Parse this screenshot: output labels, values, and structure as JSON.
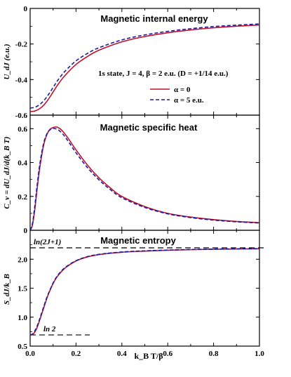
{
  "chart_data": [
    {
      "type": "line",
      "title": "Magnetic internal energy",
      "ylabel": "U_dJ (e.u.)",
      "xlim": [
        0,
        1.0
      ],
      "ylim": [
        -0.6,
        0
      ],
      "yticks": [
        "0",
        "-0.2",
        "-0.4",
        "-0.6"
      ],
      "annotation": "1s state, J = 4, β = 2 e.u. (D = +1/14 e.u.)",
      "series": [
        {
          "name": "α = 0",
          "color": "#c0102a",
          "dash": "solid",
          "x": [
            0.0,
            0.02,
            0.04,
            0.06,
            0.08,
            0.1,
            0.12,
            0.15,
            0.2,
            0.25,
            0.3,
            0.4,
            0.5,
            0.6,
            0.7,
            0.8,
            0.9,
            1.0
          ],
          "y": [
            -0.58,
            -0.577,
            -0.565,
            -0.543,
            -0.51,
            -0.47,
            -0.43,
            -0.38,
            -0.315,
            -0.27,
            -0.235,
            -0.188,
            -0.158,
            -0.137,
            -0.121,
            -0.109,
            -0.1,
            -0.093
          ]
        },
        {
          "name": "α = 5 e.u.",
          "color": "#1a1a9c",
          "dash": "dashed",
          "x": [
            0.0,
            0.02,
            0.04,
            0.06,
            0.08,
            0.1,
            0.12,
            0.15,
            0.2,
            0.25,
            0.3,
            0.4,
            0.5,
            0.6,
            0.7,
            0.8,
            0.9,
            1.0
          ],
          "y": [
            -0.56,
            -0.556,
            -0.542,
            -0.518,
            -0.484,
            -0.445,
            -0.405,
            -0.356,
            -0.295,
            -0.253,
            -0.221,
            -0.177,
            -0.149,
            -0.129,
            -0.114,
            -0.102,
            -0.094,
            -0.087
          ]
        }
      ]
    },
    {
      "type": "line",
      "title": "Magnetic specific heat",
      "ylabel": "C_v = dU_dJ/d(k_B T)",
      "xlim": [
        0,
        1.0
      ],
      "ylim": [
        0,
        0.68
      ],
      "yticks": [
        "0",
        "0.2",
        "0.4",
        "0.6"
      ],
      "series": [
        {
          "name": "α = 0",
          "color": "#c0102a",
          "dash": "solid",
          "x": [
            0.0,
            0.01,
            0.02,
            0.03,
            0.04,
            0.05,
            0.06,
            0.07,
            0.08,
            0.09,
            0.1,
            0.11,
            0.12,
            0.13,
            0.14,
            0.15,
            0.17,
            0.2,
            0.25,
            0.3,
            0.35,
            0.4,
            0.5,
            0.6,
            0.7,
            0.8,
            0.9,
            1.0
          ],
          "y": [
            0.0,
            0.03,
            0.12,
            0.24,
            0.35,
            0.44,
            0.51,
            0.555,
            0.585,
            0.6,
            0.607,
            0.61,
            0.608,
            0.6,
            0.588,
            0.572,
            0.535,
            0.475,
            0.385,
            0.31,
            0.25,
            0.2,
            0.14,
            0.1,
            0.078,
            0.063,
            0.052,
            0.045
          ]
        },
        {
          "name": "α = 5 e.u.",
          "color": "#1a1a9c",
          "dash": "dashed",
          "x": [
            0.0,
            0.01,
            0.02,
            0.03,
            0.04,
            0.05,
            0.06,
            0.07,
            0.08,
            0.09,
            0.1,
            0.11,
            0.12,
            0.13,
            0.14,
            0.15,
            0.17,
            0.2,
            0.25,
            0.3,
            0.35,
            0.4,
            0.5,
            0.6,
            0.7,
            0.8,
            0.9,
            1.0
          ],
          "y": [
            0.0,
            0.04,
            0.14,
            0.26,
            0.37,
            0.455,
            0.52,
            0.56,
            0.585,
            0.597,
            0.601,
            0.6,
            0.595,
            0.585,
            0.572,
            0.556,
            0.518,
            0.458,
            0.37,
            0.298,
            0.24,
            0.192,
            0.135,
            0.097,
            0.075,
            0.06,
            0.05,
            0.043
          ]
        }
      ]
    },
    {
      "type": "line",
      "title": "Magnetic entropy",
      "ylabel": "S_dJ/k_B",
      "xlabel": "k_B T/β",
      "xlim": [
        0,
        1.0
      ],
      "ylim": [
        0.5,
        2.5
      ],
      "yticks": [
        "0.5",
        "1.0",
        "1.5",
        "2.0"
      ],
      "xticks": [
        "0.0",
        "0.2",
        "0.4",
        "0.6",
        "0.8",
        "1.0"
      ],
      "reference_lines": [
        {
          "label": "ln(2J+1)",
          "y": 2.197
        },
        {
          "label": "ln 2",
          "y": 0.693
        }
      ],
      "series": [
        {
          "name": "α = 0",
          "color": "#c0102a",
          "dash": "solid",
          "x": [
            0.0,
            0.01,
            0.02,
            0.03,
            0.04,
            0.05,
            0.06,
            0.07,
            0.08,
            0.1,
            0.12,
            0.15,
            0.2,
            0.25,
            0.3,
            0.4,
            0.5,
            0.6,
            0.7,
            0.8,
            0.9,
            1.0
          ],
          "y": [
            0.69,
            0.7,
            0.74,
            0.82,
            0.93,
            1.05,
            1.17,
            1.29,
            1.4,
            1.58,
            1.71,
            1.84,
            1.97,
            2.04,
            2.08,
            2.12,
            2.14,
            2.155,
            2.165,
            2.172,
            2.177,
            2.18
          ]
        },
        {
          "name": "α = 5 e.u.",
          "color": "#1a1a9c",
          "dash": "dashed",
          "x": [
            0.0,
            0.01,
            0.02,
            0.03,
            0.04,
            0.05,
            0.06,
            0.07,
            0.08,
            0.1,
            0.12,
            0.15,
            0.2,
            0.25,
            0.3,
            0.4,
            0.5,
            0.6,
            0.7,
            0.8,
            0.9,
            1.0
          ],
          "y": [
            0.69,
            0.71,
            0.76,
            0.84,
            0.95,
            1.07,
            1.19,
            1.31,
            1.41,
            1.59,
            1.72,
            1.85,
            1.975,
            2.045,
            2.085,
            2.125,
            2.145,
            2.158,
            2.168,
            2.175,
            2.18,
            2.183
          ]
        }
      ]
    }
  ]
}
